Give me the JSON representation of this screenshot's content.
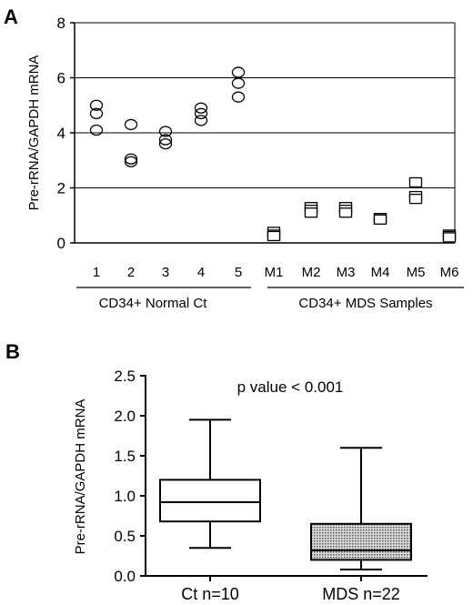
{
  "panels": [
    {
      "letter": "A"
    },
    {
      "letter": "B"
    }
  ],
  "chart_data": [
    {
      "type": "scatter",
      "panel": "A",
      "ylabel": "Pre-rRNA/GAPDH mRNA",
      "ylim": [
        0,
        8
      ],
      "yticks": [
        0,
        2,
        4,
        6,
        8
      ],
      "grid": true,
      "categories": [
        "1",
        "2",
        "3",
        "4",
        "5",
        "M1",
        "M2",
        "M3",
        "M4",
        "M5",
        "M6"
      ],
      "groups": [
        {
          "label": "CD34+ Normal Ct",
          "categories": [
            "1",
            "2",
            "3",
            "4",
            "5"
          ],
          "marker": "circle"
        },
        {
          "label": "CD34+ MDS Samples",
          "categories": [
            "M1",
            "M2",
            "M3",
            "M4",
            "M5",
            "M6"
          ],
          "marker": "square"
        }
      ],
      "points": [
        [
          5.0,
          4.7,
          4.1
        ],
        [
          4.3,
          3.05,
          2.95
        ],
        [
          4.05,
          3.75,
          3.6
        ],
        [
          4.9,
          4.7,
          4.45
        ],
        [
          6.2,
          5.8,
          5.3
        ],
        [
          0.4,
          0.3,
          0.25
        ],
        [
          1.3,
          1.2,
          1.1
        ],
        [
          1.3,
          1.2,
          1.1
        ],
        [
          0.9,
          0.9,
          0.85
        ],
        [
          2.2,
          1.7,
          1.6
        ],
        [
          0.3,
          0.25,
          0.2
        ]
      ]
    },
    {
      "type": "box",
      "panel": "B",
      "title": "p value < 0.001",
      "ylabel": "Pre-rRNA/GAPDH mRNA",
      "ylim": [
        0,
        2.5
      ],
      "yticks": [
        "0.0",
        "0.5",
        "1.0",
        "1.5",
        "2.0",
        "2.5"
      ],
      "categories": [
        "Ct  n=10",
        "MDS n=22"
      ],
      "boxes": [
        {
          "name": "Ct  n=10",
          "min": 0.35,
          "q1": 0.68,
          "median": 0.92,
          "q3": 1.2,
          "max": 1.95,
          "fill": "#ffffff"
        },
        {
          "name": "MDS n=22",
          "min": 0.08,
          "q1": 0.2,
          "median": 0.32,
          "q3": 0.65,
          "max": 1.6,
          "fill": "#b5b5b5"
        }
      ]
    }
  ]
}
